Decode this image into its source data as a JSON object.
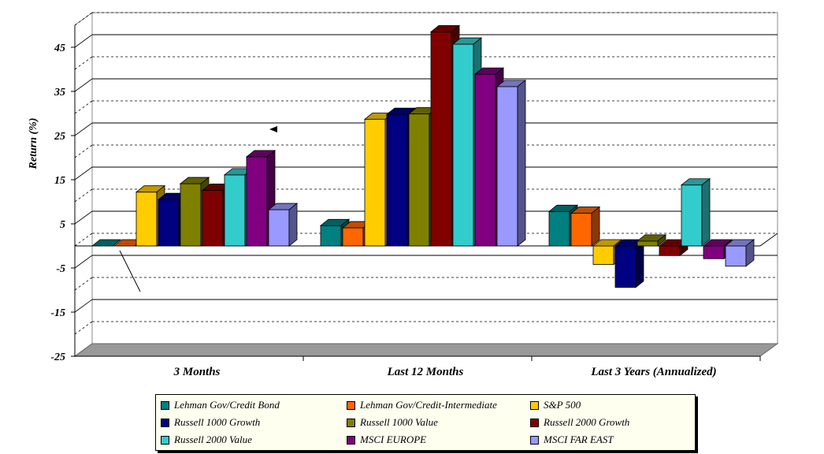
{
  "chart_data": {
    "type": "bar",
    "ylabel": "Return (%)",
    "ylim": [
      -25,
      50
    ],
    "yticks": [
      -25,
      -15,
      -5,
      5,
      15,
      25,
      35,
      45
    ],
    "categories": [
      "3 Months",
      "Last 12 Months",
      "Last 3 Years (Annualized)"
    ],
    "series": [
      {
        "name": "Lehman Gov/Credit Bond",
        "color": "#008080",
        "values": [
          0.0,
          4.6,
          7.8
        ]
      },
      {
        "name": "Lehman Gov/Credit-Intermediate",
        "color": "#ff6600",
        "values": [
          0.0,
          4.1,
          7.4
        ]
      },
      {
        "name": "S&P 500",
        "color": "#ffcc00",
        "values": [
          12.2,
          28.7,
          -4.2
        ]
      },
      {
        "name": "Russell 1000 Growth",
        "color": "#000080",
        "values": [
          10.5,
          29.8,
          -9.4
        ]
      },
      {
        "name": "Russell 1000 Value",
        "color": "#808000",
        "values": [
          14.1,
          29.9,
          1.1
        ]
      },
      {
        "name": "Russell 2000 Growth",
        "color": "#800000",
        "values": [
          12.6,
          48.5,
          -2.2
        ]
      },
      {
        "name": "Russell 2000 Value",
        "color": "#33cccc",
        "values": [
          16.1,
          45.7,
          13.8
        ]
      },
      {
        "name": "MSCI EUROPE",
        "color": "#800080",
        "values": [
          20.2,
          38.9,
          -2.9
        ]
      },
      {
        "name": "MSCI FAR EAST",
        "color": "#9999ff",
        "values": [
          8.2,
          36.1,
          -4.6
        ]
      }
    ],
    "grid": "horizontal",
    "legend_position": "bottom"
  }
}
